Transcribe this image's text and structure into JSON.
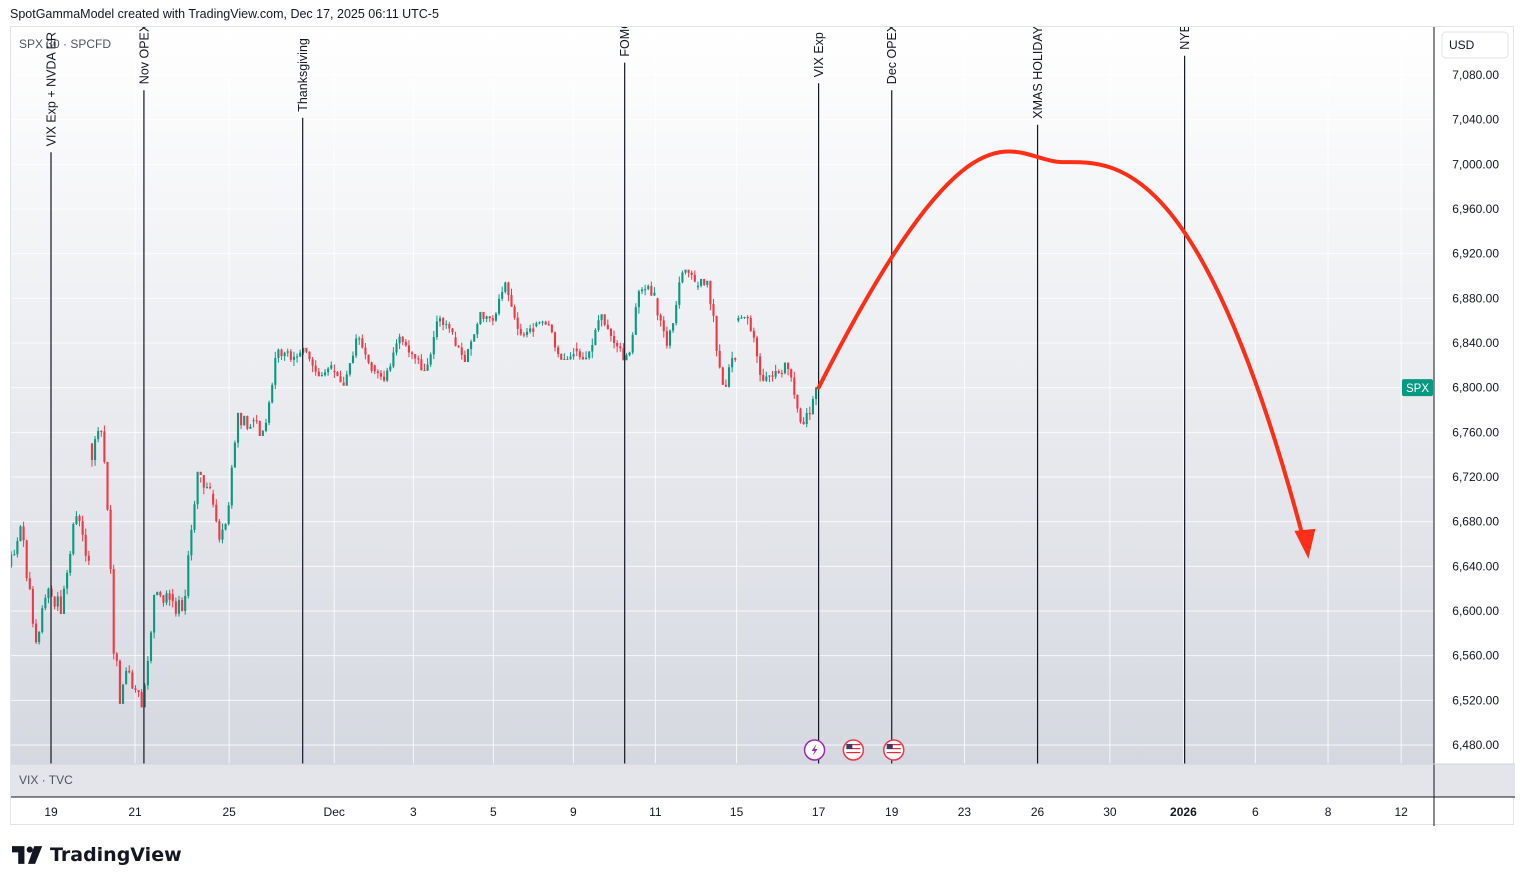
{
  "header": {
    "attribution": "SpotGammaModel created with TradingView.com, Dec 17, 2025 06:11 UTC-5"
  },
  "footer": {
    "brand": "TradingView"
  },
  "colors": {
    "up": "#089981",
    "down": "#f23645",
    "arrow": "#ff2e17",
    "line": "#131722",
    "grid": "#eceef2"
  },
  "chart_data": {
    "type": "candlestick",
    "symbol_label": "SPX 30 · SPCFD",
    "currency": "USD",
    "last_price_label": "SPX",
    "sub_pane_label": "VIX · TVC",
    "ylim": [
      6455,
      7110
    ],
    "y_ticks": [
      "7,080.00",
      "7,040.00",
      "7,000.00",
      "6,960.00",
      "6,920.00",
      "6,880.00",
      "6,840.00",
      "6,800.00",
      "6,760.00",
      "6,720.00",
      "6,680.00",
      "6,640.00",
      "6,600.00",
      "6,560.00",
      "6,520.00",
      "6,480.00"
    ],
    "y_tick_values": [
      7080,
      7040,
      7000,
      6960,
      6920,
      6880,
      6840,
      6800,
      6760,
      6720,
      6680,
      6640,
      6600,
      6560,
      6520,
      6480
    ],
    "x_ticks": [
      {
        "label": "19",
        "i": 0,
        "bold": false
      },
      {
        "label": "21",
        "i": 2.08,
        "bold": false
      },
      {
        "label": "25",
        "i": 4.41,
        "bold": false
      },
      {
        "label": "Dec",
        "i": 7.01,
        "bold": false
      },
      {
        "label": "3",
        "i": 8.97,
        "bold": false
      },
      {
        "label": "5",
        "i": 10.95,
        "bold": false
      },
      {
        "label": "9",
        "i": 12.93,
        "bold": false
      },
      {
        "label": "11",
        "i": 14.96,
        "bold": false
      },
      {
        "label": "15",
        "i": 16.97,
        "bold": false
      },
      {
        "label": "17",
        "i": 19.0,
        "bold": false
      },
      {
        "label": "19",
        "i": 20.81,
        "bold": false
      },
      {
        "label": "23",
        "i": 22.61,
        "bold": false
      },
      {
        "label": "26",
        "i": 24.42,
        "bold": false
      },
      {
        "label": "30",
        "i": 26.21,
        "bold": false
      },
      {
        "label": "2026",
        "i": 28.03,
        "bold": true
      },
      {
        "label": "6",
        "i": 29.81,
        "bold": false
      },
      {
        "label": "8",
        "i": 31.61,
        "bold": false
      },
      {
        "label": "12",
        "i": 33.42,
        "bold": false
      }
    ],
    "events": [
      {
        "label": "VIX Exp + NVDA ER",
        "i": 0.0
      },
      {
        "label": "Nov OPEX",
        "i": 2.3
      },
      {
        "label": "Thanksgiving",
        "i": 6.23
      },
      {
        "label": "FOMC",
        "i": 14.2
      },
      {
        "label": "VIX Exp",
        "i": 19.0
      },
      {
        "label": "Dec OPEX",
        "i": 20.81
      },
      {
        "label": "XMAS HOLIDAYS",
        "i": 24.42
      },
      {
        "label": "NYE",
        "i": 28.06
      }
    ],
    "event_icons": [
      {
        "name": "lightning-event-icon",
        "i": 18.9
      },
      {
        "name": "us-flag-event-icon",
        "i": 19.86
      },
      {
        "name": "us-flag-event-icon",
        "i": 20.86
      }
    ],
    "sessions": [
      {
        "date": "Nov 18",
        "i": -1,
        "open": 6640,
        "high": 6680,
        "low": 6570,
        "close": 6620
      },
      {
        "date": "Nov 19",
        "i": 0,
        "open": 6620,
        "high": 6690,
        "low": 6600,
        "close": 6645
      },
      {
        "date": "Nov 20",
        "i": 1,
        "open": 6750,
        "high": 6775,
        "low": 6535,
        "close": 6545
      },
      {
        "date": "Nov 21",
        "i": 2,
        "open": 6545,
        "high": 6625,
        "low": 6520,
        "close": 6610
      },
      {
        "date": "Nov 24",
        "i": 3,
        "open": 6615,
        "high": 6715,
        "low": 6595,
        "close": 6710
      },
      {
        "date": "Nov 25",
        "i": 4,
        "open": 6705,
        "high": 6775,
        "low": 6660,
        "close": 6765
      },
      {
        "date": "Nov 26",
        "i": 5,
        "open": 6770,
        "high": 6835,
        "low": 6760,
        "close": 6825
      },
      {
        "date": "Nov 28",
        "i": 6,
        "open": 6825,
        "high": 6835,
        "low": 6810,
        "close": 6820
      },
      {
        "date": "Dec 1",
        "i": 7,
        "open": 6815,
        "high": 6850,
        "low": 6805,
        "close": 6815
      },
      {
        "date": "Dec 2",
        "i": 8,
        "open": 6820,
        "high": 6850,
        "low": 6805,
        "close": 6830
      },
      {
        "date": "Dec 3",
        "i": 9,
        "open": 6830,
        "high": 6865,
        "low": 6815,
        "close": 6850
      },
      {
        "date": "Dec 4",
        "i": 10,
        "open": 6845,
        "high": 6865,
        "low": 6825,
        "close": 6860
      },
      {
        "date": "Dec 5",
        "i": 11,
        "open": 6860,
        "high": 6895,
        "low": 6845,
        "close": 6850
      },
      {
        "date": "Dec 8",
        "i": 12,
        "open": 6855,
        "high": 6860,
        "low": 6825,
        "close": 6830
      },
      {
        "date": "Dec 9",
        "i": 13,
        "open": 6835,
        "high": 6865,
        "low": 6825,
        "close": 6840
      },
      {
        "date": "Dec 10",
        "i": 14,
        "open": 6840,
        "high": 6895,
        "low": 6825,
        "close": 6885
      },
      {
        "date": "Dec 11",
        "i": 15,
        "open": 6880,
        "high": 6905,
        "low": 6835,
        "close": 6895
      },
      {
        "date": "Dec 12",
        "i": 16,
        "open": 6890,
        "high": 6895,
        "low": 6800,
        "close": 6825
      },
      {
        "date": "Dec 15",
        "i": 17,
        "open": 6860,
        "high": 6865,
        "low": 6805,
        "close": 6815
      },
      {
        "date": "Dec 16",
        "i": 18,
        "open": 6815,
        "high": 6820,
        "low": 6760,
        "close": 6800
      }
    ],
    "projection": {
      "description_points": [
        {
          "i": 19.0,
          "price": 6800
        },
        {
          "i": 22.9,
          "price": 6998
        },
        {
          "i": 25.05,
          "price": 7002
        },
        {
          "i": 31.0,
          "price": 6652
        }
      ]
    }
  }
}
